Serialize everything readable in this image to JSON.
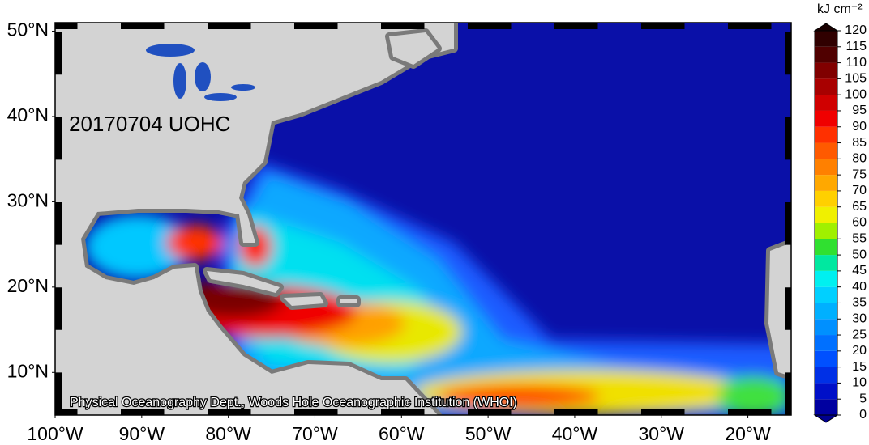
{
  "map": {
    "title": "20170704 UOHC",
    "credit": "Physical Oceanography Dept., Woods Hole Oceanographic Institution (WHOI)",
    "xlim": [
      -100,
      -15
    ],
    "ylim": [
      5,
      51
    ],
    "xticks": [
      {
        "value": -100,
        "label": "100°W"
      },
      {
        "value": -90,
        "label": "90°W"
      },
      {
        "value": -80,
        "label": "80°W"
      },
      {
        "value": -70,
        "label": "70°W"
      },
      {
        "value": -60,
        "label": "60°W"
      },
      {
        "value": -50,
        "label": "50°W"
      },
      {
        "value": -40,
        "label": "40°W"
      },
      {
        "value": -30,
        "label": "30°W"
      },
      {
        "value": -20,
        "label": "20°W"
      }
    ],
    "yticks": [
      {
        "value": 10,
        "label": "10°N"
      },
      {
        "value": 20,
        "label": "20°N"
      },
      {
        "value": 30,
        "label": "30°N"
      },
      {
        "value": 40,
        "label": "40°N"
      },
      {
        "value": 50,
        "label": "50°N"
      }
    ],
    "colorbar": {
      "unit": "kJ cm⁻²",
      "ticks": [
        0,
        5,
        10,
        15,
        20,
        25,
        30,
        35,
        40,
        45,
        50,
        55,
        60,
        65,
        70,
        75,
        80,
        85,
        90,
        95,
        100,
        105,
        110,
        115,
        120
      ],
      "colors": [
        "#0000a0",
        "#0010c8",
        "#0030e6",
        "#0050ff",
        "#0070ff",
        "#0090ff",
        "#00b0ff",
        "#00d0ff",
        "#00f0f0",
        "#00e8a0",
        "#30e030",
        "#a0f000",
        "#f0f000",
        "#ffd000",
        "#ffa800",
        "#ff8000",
        "#ff5a00",
        "#ff3000",
        "#f00000",
        "#d00000",
        "#a80000",
        "#800000",
        "#500000",
        "#300000"
      ],
      "under_color": "#000090",
      "over_color": "#1a0000"
    }
  }
}
